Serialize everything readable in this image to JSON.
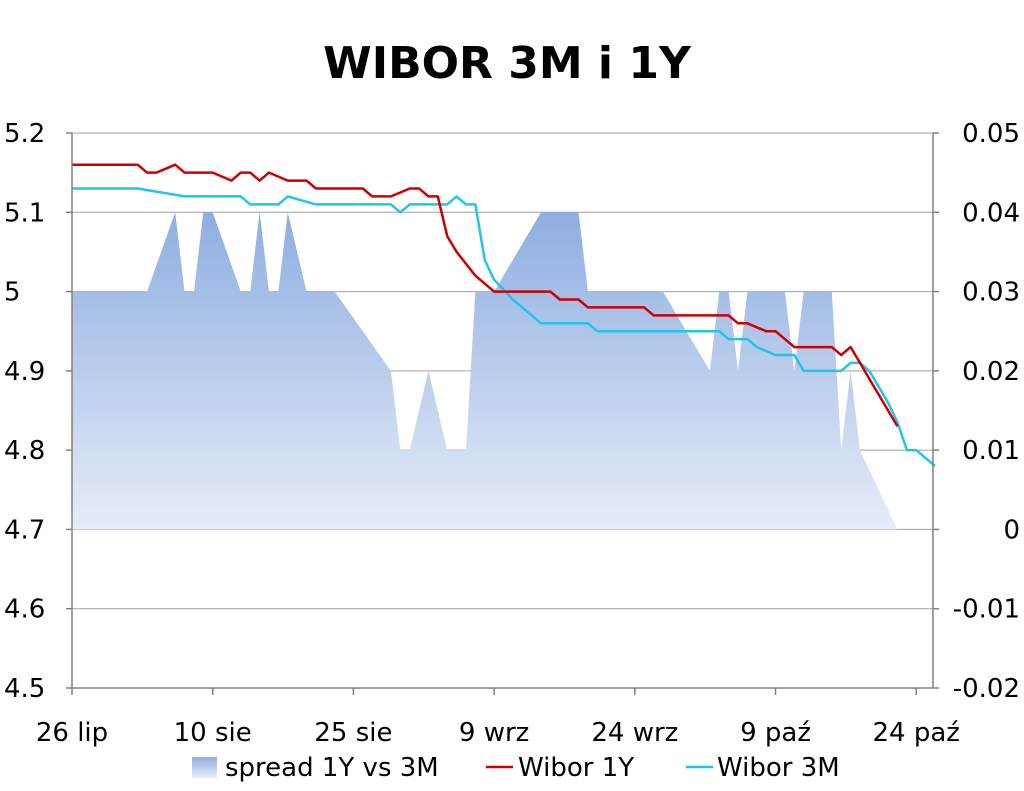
{
  "chart_data": {
    "type": "line",
    "title": "WIBOR 3M i 1Y",
    "xlabel": "",
    "ylabel": "",
    "y2label": "",
    "x_ticks": [
      "26 lip",
      "10 sie",
      "25 sie",
      "9 wrz",
      "24 wrz",
      "9 paź",
      "24 paź"
    ],
    "x_range_days": [
      0,
      92
    ],
    "ylim": [
      4.5,
      5.2
    ],
    "y_ticks": [
      "4.5",
      "4.6",
      "4.7",
      "4.8",
      "4.9",
      "5",
      "5.1",
      "5.2"
    ],
    "y2lim": [
      -0.02,
      0.05
    ],
    "y2_ticks": [
      "-0.02",
      "-0.01",
      "0",
      "0.01",
      "0.02",
      "0.03",
      "0.04",
      "0.05"
    ],
    "grid": true,
    "legend_position": "bottom",
    "colors": {
      "wibor_1y": "#cc0000",
      "wibor_3m": "#22c4ea",
      "spread_top": "#8eaee0",
      "spread_bottom": "#e6ecf8",
      "grid": "#a0a0a0"
    },
    "series": [
      {
        "name": "spread 1Y vs 3M",
        "type": "area",
        "axis": "right",
        "x": [
          0,
          8,
          11,
          12,
          13,
          14,
          15,
          18,
          19,
          20,
          21,
          22,
          23,
          25,
          28,
          34,
          35,
          36,
          38,
          40,
          41,
          42,
          43,
          44,
          45,
          50,
          51,
          54,
          55,
          63,
          68,
          69,
          70,
          71,
          72,
          76,
          77,
          78,
          79,
          80,
          81,
          82,
          83,
          84,
          88
        ],
        "values": [
          0.03,
          0.03,
          0.04,
          0.03,
          0.03,
          0.04,
          0.04,
          0.03,
          0.03,
          0.04,
          0.03,
          0.03,
          0.04,
          0.03,
          0.03,
          0.02,
          0.01,
          0.01,
          0.02,
          0.01,
          0.01,
          0.01,
          0.03,
          0.03,
          0.03,
          0.04,
          0.04,
          0.04,
          0.03,
          0.03,
          0.02,
          0.03,
          0.03,
          0.02,
          0.03,
          0.03,
          0.02,
          0.03,
          0.03,
          0.03,
          0.03,
          0.01,
          0.02,
          0.01,
          0
        ]
      },
      {
        "name": "Wibor 1Y",
        "type": "line",
        "axis": "left",
        "x": [
          0,
          6,
          7,
          8,
          9,
          10,
          11,
          12,
          15,
          16,
          17,
          18,
          19,
          20,
          21,
          22,
          23,
          24,
          25,
          26,
          28,
          29,
          30,
          31,
          32,
          33,
          34,
          35,
          36,
          37,
          38,
          39,
          40,
          41,
          42,
          43,
          45,
          46,
          47,
          48,
          49,
          50,
          51,
          52,
          54,
          55,
          56,
          57,
          58,
          59,
          61,
          62,
          64,
          65,
          66,
          67,
          68,
          69,
          70,
          71,
          72,
          73,
          74,
          75,
          76,
          77,
          78,
          79,
          80,
          81,
          82,
          83,
          84,
          85,
          86,
          87,
          88
        ],
        "values": [
          5.16,
          5.16,
          5.16,
          5.15,
          5.15,
          5.155,
          5.16,
          5.15,
          5.15,
          5.145,
          5.14,
          5.15,
          5.15,
          5.14,
          5.15,
          5.145,
          5.14,
          5.14,
          5.14,
          5.13,
          5.13,
          5.13,
          5.13,
          5.13,
          5.12,
          5.12,
          5.12,
          5.125,
          5.13,
          5.13,
          5.12,
          5.12,
          5.07,
          5.05,
          5.035,
          5.02,
          5.0,
          5.0,
          5.0,
          5.0,
          5.0,
          5.0,
          5.0,
          4.99,
          4.99,
          4.98,
          4.98,
          4.98,
          4.98,
          4.98,
          4.98,
          4.97,
          4.97,
          4.97,
          4.97,
          4.97,
          4.97,
          4.97,
          4.97,
          4.96,
          4.96,
          4.955,
          4.95,
          4.95,
          4.94,
          4.93,
          4.93,
          4.93,
          4.93,
          4.93,
          4.92,
          4.93,
          4.91,
          4.89,
          4.87,
          4.85,
          4.83
        ]
      },
      {
        "name": "Wibor 3M",
        "type": "line",
        "axis": "left",
        "x": [
          0,
          6,
          7,
          12,
          13,
          14,
          18,
          19,
          20,
          21,
          22,
          23,
          26,
          28,
          34,
          35,
          36,
          38,
          39,
          40,
          41,
          42,
          43,
          44,
          45,
          47,
          48,
          49,
          50,
          52,
          53,
          54,
          55,
          56,
          57,
          58,
          59,
          61,
          62,
          64,
          66,
          67,
          68,
          69,
          70,
          71,
          72,
          73,
          74,
          75,
          76,
          77,
          78,
          79,
          80,
          81,
          82,
          83,
          84,
          85,
          86,
          87,
          88,
          89,
          90,
          91,
          92
        ],
        "values": [
          5.13,
          5.13,
          5.13,
          5.12,
          5.12,
          5.12,
          5.12,
          5.11,
          5.11,
          5.11,
          5.11,
          5.12,
          5.11,
          5.11,
          5.11,
          5.1,
          5.11,
          5.11,
          5.11,
          5.11,
          5.12,
          5.11,
          5.11,
          5.04,
          5.015,
          4.99,
          4.98,
          4.97,
          4.96,
          4.96,
          4.96,
          4.96,
          4.96,
          4.95,
          4.95,
          4.95,
          4.95,
          4.95,
          4.95,
          4.95,
          4.95,
          4.95,
          4.95,
          4.95,
          4.94,
          4.94,
          4.94,
          4.93,
          4.925,
          4.92,
          4.92,
          4.92,
          4.9,
          4.9,
          4.9,
          4.9,
          4.9,
          4.91,
          4.91,
          4.9,
          4.88,
          4.86,
          4.835,
          4.8,
          4.8,
          4.79,
          4.78
        ]
      }
    ]
  }
}
